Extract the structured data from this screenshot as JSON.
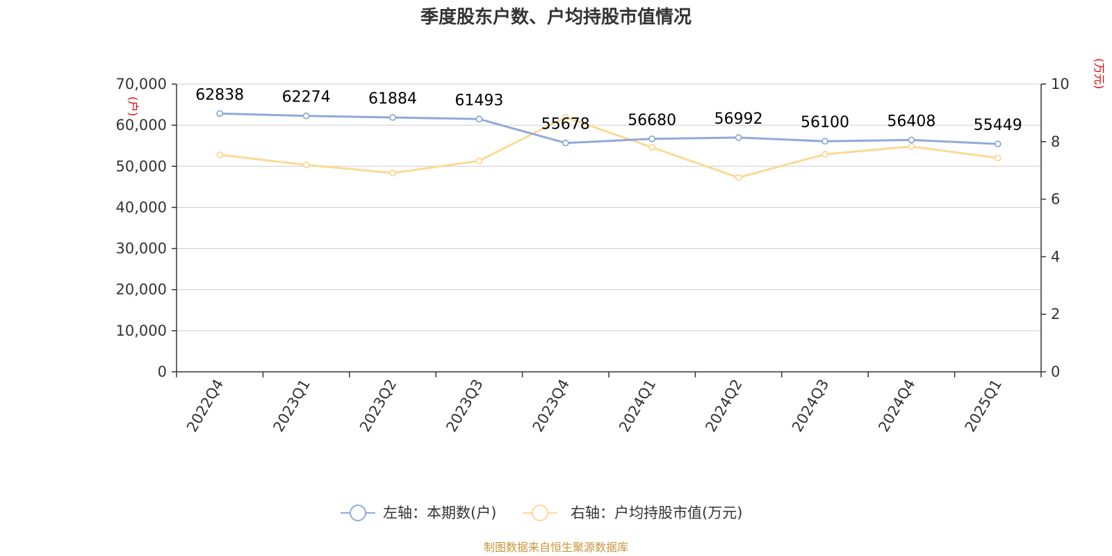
{
  "title": "季度股东户数、户均持股市值情况",
  "source": "制图数据来自恒生聚源数据库",
  "chart_data": {
    "type": "line",
    "categories": [
      "2022Q4",
      "2023Q1",
      "2023Q2",
      "2023Q3",
      "2023Q4",
      "2024Q1",
      "2024Q2",
      "2024Q3",
      "2024Q4",
      "2025Q1"
    ],
    "y_left": {
      "unit": "(户)",
      "range": [
        0,
        70000
      ],
      "ticks": [
        "0",
        "10,000",
        "20,000",
        "30,000",
        "40,000",
        "50,000",
        "60,000",
        "70,000"
      ]
    },
    "y_right": {
      "unit": "(万元)",
      "range": [
        0,
        10
      ],
      "ticks": [
        "0",
        "2",
        "4",
        "6",
        "8",
        "10"
      ]
    },
    "grid": true,
    "legend_position": "bottom",
    "series": [
      {
        "name": "左轴：本期数(户)",
        "axis": "left",
        "color": "#8eaadb",
        "values": [
          62838,
          62274,
          61884,
          61493,
          55678,
          56680,
          56992,
          56100,
          56408,
          55449
        ],
        "labels": [
          "62838",
          "62274",
          "61884",
          "61493",
          "55678",
          "56680",
          "56992",
          "56100",
          "56408",
          "55449"
        ]
      },
      {
        "name": "右轴：户均持股市值(万元)",
        "axis": "right",
        "color": "#fcd995",
        "values": [
          7.54,
          7.19,
          6.91,
          7.33,
          8.85,
          7.8,
          6.75,
          7.56,
          7.83,
          7.43
        ]
      }
    ]
  }
}
